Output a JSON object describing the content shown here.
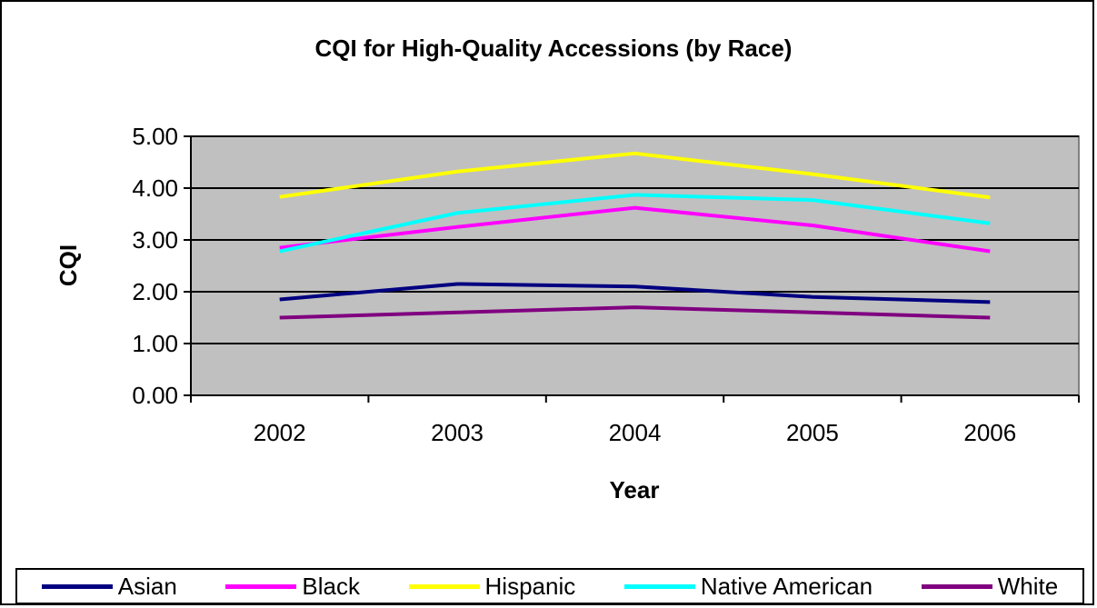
{
  "chart_data": {
    "type": "line",
    "title": "CQI for High-Quality Accessions (by Race)",
    "xlabel": "Year",
    "ylabel": "CQI",
    "categories": [
      "2002",
      "2003",
      "2004",
      "2005",
      "2006"
    ],
    "ylim": [
      0,
      5
    ],
    "y_ticks": [
      "0.00",
      "1.00",
      "2.00",
      "3.00",
      "4.00",
      "5.00"
    ],
    "grid": true,
    "plot_background": "#c0c0c0",
    "legend_position": "bottom",
    "series": [
      {
        "name": "Asian",
        "color": "#000080",
        "values": [
          1.85,
          2.15,
          2.1,
          1.9,
          1.8
        ]
      },
      {
        "name": "Black",
        "color": "#ff00ff",
        "values": [
          2.85,
          3.25,
          3.62,
          3.28,
          2.78
        ]
      },
      {
        "name": "Hispanic",
        "color": "#ffff00",
        "values": [
          3.83,
          4.32,
          4.67,
          4.27,
          3.82
        ]
      },
      {
        "name": "Native American",
        "color": "#00ffff",
        "values": [
          2.78,
          3.52,
          3.87,
          3.77,
          3.32
        ]
      },
      {
        "name": "White",
        "color": "#800080",
        "values": [
          1.5,
          1.6,
          1.7,
          1.6,
          1.5
        ]
      }
    ]
  }
}
